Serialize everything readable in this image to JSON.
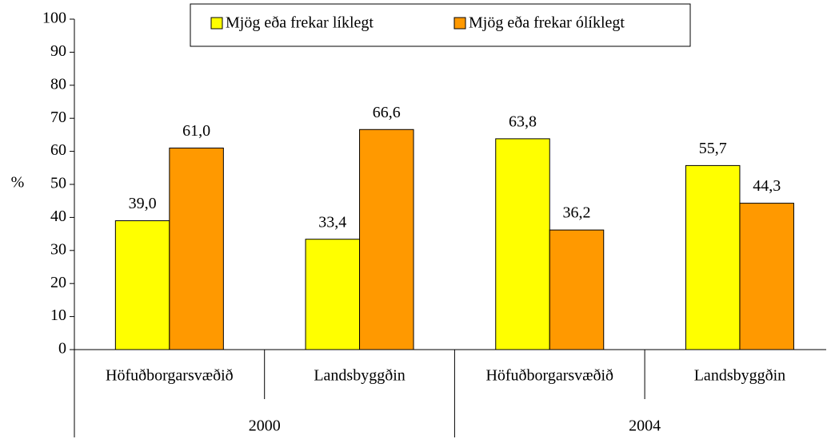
{
  "chart_data": {
    "type": "bar",
    "y_label": "%",
    "categories": [
      "Höfuðborgarsvæðið",
      "Landsbyggðin",
      "Höfuðborgarsvæðið",
      "Landsbyggðin"
    ],
    "groups": [
      "2000",
      "2004"
    ],
    "series": [
      {
        "name": "Mjög eða frekar líklegt",
        "color": "#ffff00",
        "values": [
          39.0,
          33.4,
          63.8,
          55.7
        ],
        "value_labels": [
          "39,0",
          "33,4",
          "63,8",
          "55,7"
        ]
      },
      {
        "name": "Mjög eða frekar ólíklegt",
        "color": "#ff9900",
        "values": [
          61.0,
          66.6,
          36.2,
          44.3
        ],
        "value_labels": [
          "61,0",
          "66,6",
          "36,2",
          "44,3"
        ]
      }
    ],
    "ylim": [
      0,
      100
    ],
    "yticks": [
      0,
      10,
      20,
      30,
      40,
      50,
      60,
      70,
      80,
      90,
      100
    ],
    "legend": "top"
  }
}
